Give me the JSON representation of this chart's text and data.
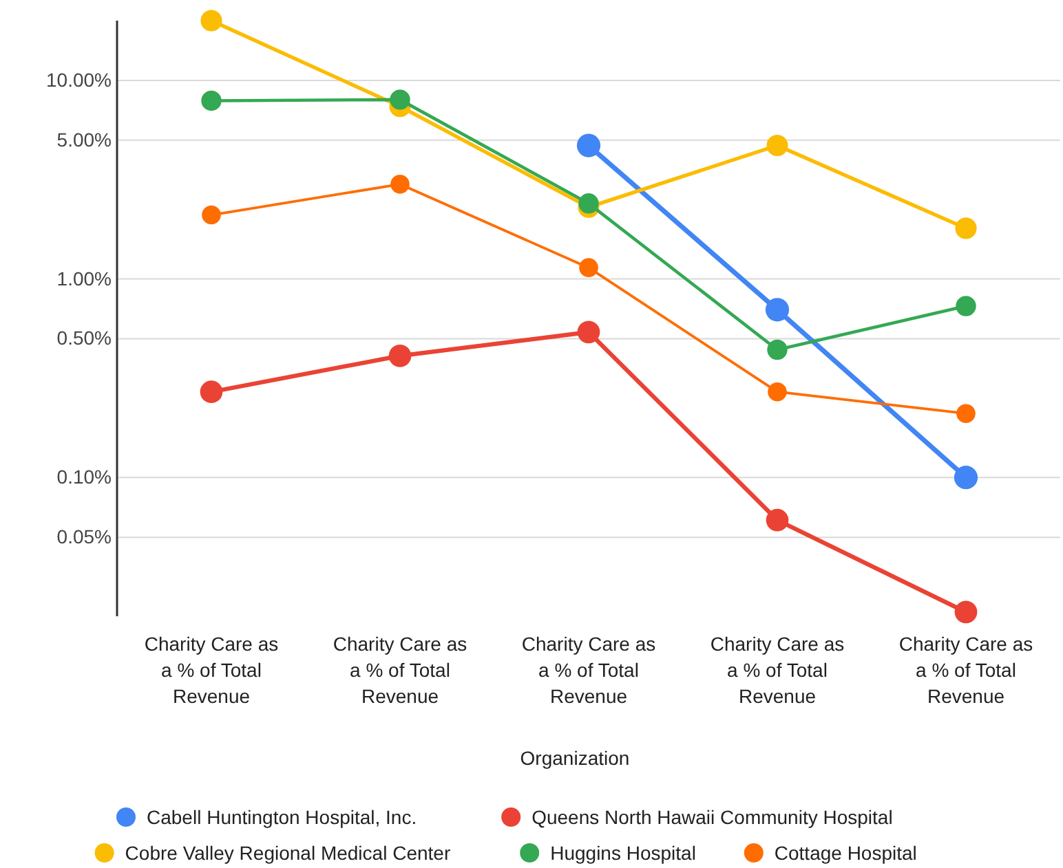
{
  "chart_data": {
    "type": "line",
    "xlabel": "Organization",
    "categories": [
      "Charity Care as a % of Total Revenue",
      "Charity Care as a % of Total Revenue",
      "Charity Care as a % of Total Revenue",
      "Charity Care as a % of Total Revenue",
      "Charity Care as a % of Total Revenue"
    ],
    "series": [
      {
        "name": "Cabell Huntington Hospital, Inc.",
        "color": "#4285f4",
        "values": [
          null,
          null,
          4.7,
          0.7,
          0.1
        ]
      },
      {
        "name": "Queens North Hawaii Community Hospital",
        "color": "#ea4335",
        "values": [
          0.27,
          0.41,
          0.54,
          0.061,
          0.021
        ]
      },
      {
        "name": "Cobre Valley Regional Medical Center",
        "color": "#fbbc04",
        "values": [
          20,
          7.4,
          2.3,
          4.7,
          1.8
        ]
      },
      {
        "name": "Huggins Hospital",
        "color": "#34a853",
        "values": [
          7.9,
          8,
          2.4,
          0.44,
          0.73
        ]
      },
      {
        "name": "Cottage Hospital",
        "color": "#ff6d01",
        "values": [
          2.1,
          3,
          1.14,
          0.27,
          0.21
        ]
      }
    ],
    "log": true,
    "ylim": [
      0.02,
      20
    ],
    "yticks": [
      {
        "value": 0.05,
        "label": "0.05%"
      },
      {
        "value": 0.1,
        "label": "0.10%"
      },
      {
        "value": 0.5,
        "label": "0.50%"
      },
      {
        "value": 1,
        "label": "1.00%"
      },
      {
        "value": 5,
        "label": "5.00%"
      },
      {
        "value": 10,
        "label": "10.00%"
      }
    ],
    "grid": "y",
    "legend": "bottom",
    "marker": "circle",
    "line_style": "solid"
  }
}
